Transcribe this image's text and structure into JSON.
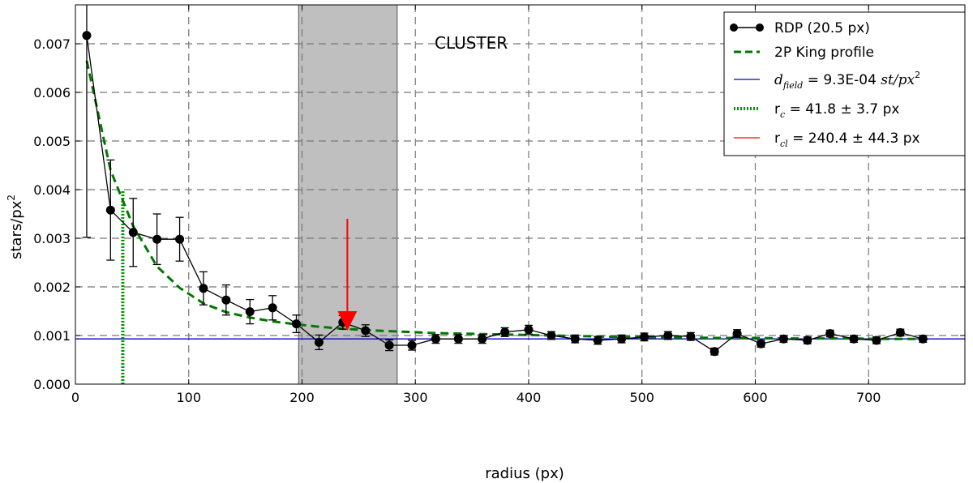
{
  "chart_data": {
    "type": "line",
    "annotation": "CLUSTER",
    "xlabel": "radius (px)",
    "ylabel_main": "stars/px",
    "ylabel_sup": "2",
    "xlim": [
      0,
      785
    ],
    "ylim": [
      0,
      0.0078
    ],
    "xticks": [
      0,
      100,
      200,
      300,
      400,
      500,
      600,
      700
    ],
    "xtick_labels": [
      "0",
      "100",
      "200",
      "300",
      "400",
      "500",
      "600",
      "700"
    ],
    "yticks": [
      0,
      0.001,
      0.002,
      0.003,
      0.004,
      0.005,
      0.006,
      0.007
    ],
    "ytick_labels": [
      "0.000",
      "0.001",
      "0.002",
      "0.003",
      "0.004",
      "0.005",
      "0.006",
      "0.007"
    ],
    "grid": true,
    "legend_position": "top-right",
    "shaded_region": [
      197,
      284
    ],
    "arrow": {
      "x": 240,
      "y_top": 0.0034,
      "y_tip": 0.0011,
      "color": "#ff0000"
    },
    "colors": {
      "rdp": "#000000",
      "king": "#007700",
      "field": "#0000cc",
      "rc": "#009900",
      "rt": "#ff0000",
      "shade": "#bfbfbf"
    },
    "series": [
      {
        "name": "RDP (20.5 px)",
        "kind": "points_errorbars",
        "x": [
          10,
          31,
          51,
          72,
          92,
          113,
          133,
          154,
          174,
          195,
          215,
          236,
          256,
          277,
          297,
          318,
          338,
          359,
          379,
          400,
          420,
          441,
          461,
          482,
          502,
          523,
          543,
          564,
          584,
          605,
          625,
          646,
          666,
          687,
          707,
          728,
          748
        ],
        "y": [
          0.00717,
          0.00358,
          0.00312,
          0.00298,
          0.00298,
          0.00197,
          0.00173,
          0.00149,
          0.00157,
          0.00124,
          0.00086,
          0.00127,
          0.0011,
          0.0008,
          0.0008,
          0.00093,
          0.00093,
          0.00093,
          0.00107,
          0.00112,
          0.001,
          0.00093,
          0.0009,
          0.00093,
          0.00097,
          0.001,
          0.00098,
          0.00067,
          0.00104,
          0.00083,
          0.00093,
          0.0009,
          0.00104,
          0.00093,
          0.0009,
          0.00106,
          0.00093
        ],
        "yerr": [
          0.00415,
          0.00103,
          0.0007,
          0.00052,
          0.00045,
          0.00034,
          0.00031,
          0.00025,
          0.00025,
          0.00018,
          0.00015,
          0.00014,
          0.00012,
          0.00011,
          0.0001,
          9e-05,
          9e-05,
          9e-05,
          9e-05,
          9e-05,
          8e-05,
          8e-05,
          8e-05,
          8e-05,
          8e-05,
          8e-05,
          8e-05,
          7e-05,
          8e-05,
          7e-05,
          7e-05,
          7e-05,
          7e-05,
          7e-05,
          7e-05,
          7e-05,
          7e-05
        ]
      },
      {
        "name": "2P King profile",
        "kind": "dashed_line",
        "x": [
          10,
          31,
          51,
          72,
          92,
          113,
          133,
          154,
          174,
          195,
          215,
          236,
          256,
          277,
          297,
          318,
          338,
          359,
          379,
          400,
          420,
          441,
          461,
          482,
          502,
          523,
          543,
          564,
          584,
          605,
          625,
          646,
          666,
          687,
          707,
          728,
          748
        ],
        "y": [
          0.00665,
          0.0044,
          0.00325,
          0.00242,
          0.00198,
          0.00166,
          0.00148,
          0.00137,
          0.00129,
          0.00123,
          0.00118,
          0.00114,
          0.00111,
          0.00109,
          0.00107,
          0.00105,
          0.00104,
          0.00103,
          0.00102,
          0.00101,
          0.001,
          0.00099,
          0.00098,
          0.00097,
          0.00097,
          0.00096,
          0.00096,
          0.00095,
          0.00095,
          0.00095,
          0.00094,
          0.00094,
          0.00094,
          0.00094,
          0.00093,
          0.00093,
          0.00093
        ]
      },
      {
        "name": "d_field = 9.3E-04 st/px^2",
        "kind": "hline",
        "y": 0.00093
      },
      {
        "name": "r_c = 41.8 ± 3.7 px",
        "kind": "vline_dotted",
        "x": 41.8,
        "y_top": 0.004
      },
      {
        "name": "r_cl = 240.4 ± 44.3 px",
        "kind": "marker_line",
        "x": 240.4
      }
    ],
    "legend": {
      "rdp": "RDP (20.5 px)",
      "king": "2P King profile",
      "field_d": "d",
      "field_sub": "field",
      "field_eq": " = 9.3E-04 ",
      "field_unit": "st/px",
      "field_sup": "2",
      "rc_r": "r",
      "rc_sub": "c",
      "rc_eq": " = 41.8 ± 3.7 px",
      "rt_r": "r",
      "rt_sub": "cl",
      "rt_eq": " = 240.4 ± 44.3 px"
    }
  }
}
